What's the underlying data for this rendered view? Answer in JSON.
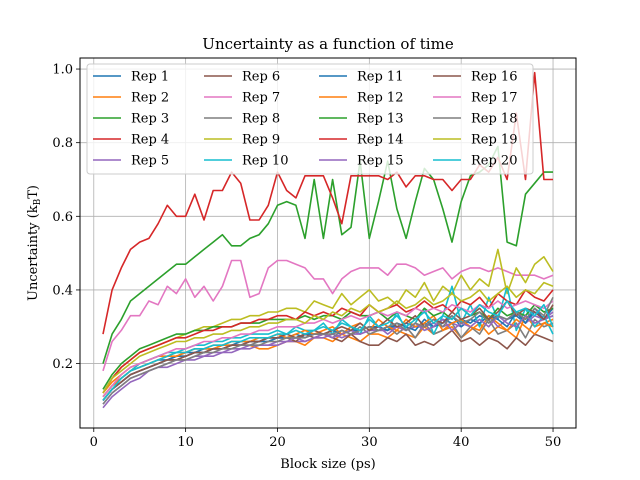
{
  "chart_data": {
    "type": "line",
    "title": "Uncertainty as a function of time",
    "xlabel": "Block size (ps)",
    "ylabel_main": "Uncertainty (k",
    "ylabel_sub": "B",
    "ylabel_tail": "T)",
    "xlim": [
      -1.5,
      52.5
    ],
    "ylim": [
      0.025,
      1.03
    ],
    "xticks": [
      0,
      10,
      20,
      30,
      40,
      50
    ],
    "yticks": [
      0.2,
      0.4,
      0.6,
      0.8,
      1.0
    ],
    "xtick_labels": [
      "0",
      "10",
      "20",
      "30",
      "40",
      "50"
    ],
    "ytick_labels": [
      "0.2",
      "0.4",
      "0.6",
      "0.8",
      "1.0"
    ],
    "grid": true,
    "legend": {
      "placement": "top-left",
      "columns": 4
    },
    "x": [
      1,
      2,
      3,
      4,
      5,
      6,
      7,
      8,
      9,
      10,
      11,
      12,
      13,
      14,
      15,
      16,
      17,
      18,
      19,
      20,
      21,
      22,
      23,
      24,
      25,
      26,
      27,
      28,
      29,
      30,
      31,
      32,
      33,
      34,
      35,
      36,
      37,
      38,
      39,
      40,
      41,
      42,
      43,
      44,
      45,
      46,
      47,
      48,
      49,
      50
    ],
    "series": [
      {
        "name": "Rep 1",
        "color": "#1f77b4",
        "values": [
          0.11,
          0.14,
          0.16,
          0.18,
          0.19,
          0.2,
          0.21,
          0.21,
          0.22,
          0.23,
          0.23,
          0.24,
          0.24,
          0.25,
          0.25,
          0.26,
          0.26,
          0.26,
          0.27,
          0.27,
          0.27,
          0.28,
          0.27,
          0.28,
          0.28,
          0.29,
          0.28,
          0.29,
          0.29,
          0.3,
          0.29,
          0.3,
          0.3,
          0.31,
          0.3,
          0.31,
          0.3,
          0.32,
          0.31,
          0.32,
          0.31,
          0.33,
          0.32,
          0.33,
          0.32,
          0.33,
          0.31,
          0.34,
          0.32,
          0.35
        ]
      },
      {
        "name": "Rep 2",
        "color": "#ff7f0e",
        "values": [
          0.12,
          0.15,
          0.17,
          0.19,
          0.2,
          0.21,
          0.22,
          0.22,
          0.23,
          0.23,
          0.24,
          0.24,
          0.24,
          0.25,
          0.25,
          0.25,
          0.25,
          0.24,
          0.24,
          0.25,
          0.26,
          0.26,
          0.25,
          0.27,
          0.27,
          0.26,
          0.28,
          0.27,
          0.26,
          0.28,
          0.28,
          0.27,
          0.29,
          0.28,
          0.27,
          0.3,
          0.28,
          0.29,
          0.3,
          0.27,
          0.29,
          0.31,
          0.28,
          0.3,
          0.29,
          0.27,
          0.33,
          0.3,
          0.31,
          0.32
        ]
      },
      {
        "name": "Rep 3",
        "color": "#2ca02c",
        "values": [
          0.2,
          0.28,
          0.32,
          0.37,
          0.39,
          0.41,
          0.43,
          0.45,
          0.47,
          0.47,
          0.49,
          0.51,
          0.53,
          0.55,
          0.52,
          0.52,
          0.54,
          0.55,
          0.58,
          0.63,
          0.64,
          0.63,
          0.54,
          0.7,
          0.54,
          0.7,
          0.55,
          0.57,
          0.75,
          0.54,
          0.64,
          0.75,
          0.62,
          0.54,
          0.64,
          0.73,
          0.7,
          0.62,
          0.53,
          0.64,
          0.71,
          0.72,
          0.74,
          0.79,
          0.53,
          0.52,
          0.66,
          0.69,
          0.72,
          0.72
        ]
      },
      {
        "name": "Rep 4",
        "color": "#d62728",
        "values": [
          0.28,
          0.4,
          0.46,
          0.51,
          0.53,
          0.54,
          0.58,
          0.63,
          0.6,
          0.6,
          0.66,
          0.59,
          0.67,
          0.67,
          0.72,
          0.69,
          0.59,
          0.59,
          0.63,
          0.72,
          0.67,
          0.65,
          0.71,
          0.71,
          0.71,
          0.65,
          0.58,
          0.71,
          0.71,
          0.71,
          0.71,
          0.7,
          0.72,
          0.68,
          0.71,
          0.71,
          0.7,
          0.7,
          0.67,
          0.7,
          0.7,
          0.74,
          0.72,
          0.76,
          0.7,
          0.88,
          0.7,
          0.99,
          0.7,
          0.7
        ]
      },
      {
        "name": "Rep 5",
        "color": "#9467bd",
        "values": [
          0.08,
          0.11,
          0.13,
          0.15,
          0.16,
          0.18,
          0.19,
          0.19,
          0.2,
          0.21,
          0.21,
          0.22,
          0.22,
          0.23,
          0.23,
          0.24,
          0.24,
          0.25,
          0.25,
          0.25,
          0.26,
          0.26,
          0.26,
          0.27,
          0.27,
          0.28,
          0.27,
          0.28,
          0.28,
          0.29,
          0.29,
          0.29,
          0.3,
          0.29,
          0.3,
          0.3,
          0.31,
          0.3,
          0.31,
          0.3,
          0.32,
          0.31,
          0.33,
          0.3,
          0.32,
          0.34,
          0.31,
          0.33,
          0.32,
          0.34
        ]
      },
      {
        "name": "Rep 6",
        "color": "#8c564b",
        "values": [
          0.1,
          0.13,
          0.15,
          0.17,
          0.18,
          0.19,
          0.2,
          0.21,
          0.22,
          0.22,
          0.23,
          0.23,
          0.24,
          0.24,
          0.25,
          0.25,
          0.26,
          0.26,
          0.27,
          0.27,
          0.27,
          0.26,
          0.28,
          0.27,
          0.28,
          0.27,
          0.26,
          0.28,
          0.26,
          0.25,
          0.25,
          0.27,
          0.26,
          0.28,
          0.25,
          0.26,
          0.25,
          0.27,
          0.29,
          0.26,
          0.27,
          0.25,
          0.27,
          0.26,
          0.24,
          0.27,
          0.25,
          0.28,
          0.27,
          0.26
        ]
      },
      {
        "name": "Rep 7",
        "color": "#e377c2",
        "values": [
          0.18,
          0.26,
          0.29,
          0.33,
          0.33,
          0.37,
          0.36,
          0.41,
          0.39,
          0.43,
          0.38,
          0.41,
          0.37,
          0.41,
          0.48,
          0.48,
          0.38,
          0.39,
          0.46,
          0.48,
          0.48,
          0.47,
          0.46,
          0.43,
          0.43,
          0.39,
          0.43,
          0.45,
          0.46,
          0.46,
          0.46,
          0.44,
          0.47,
          0.47,
          0.46,
          0.44,
          0.45,
          0.46,
          0.43,
          0.45,
          0.46,
          0.46,
          0.45,
          0.46,
          0.45,
          0.44,
          0.44,
          0.44,
          0.43,
          0.44
        ]
      },
      {
        "name": "Rep 8",
        "color": "#7f7f7f",
        "values": [
          0.1,
          0.13,
          0.15,
          0.17,
          0.18,
          0.19,
          0.2,
          0.21,
          0.21,
          0.22,
          0.23,
          0.23,
          0.24,
          0.24,
          0.25,
          0.25,
          0.25,
          0.26,
          0.26,
          0.27,
          0.27,
          0.27,
          0.28,
          0.28,
          0.28,
          0.27,
          0.29,
          0.28,
          0.3,
          0.28,
          0.29,
          0.3,
          0.28,
          0.3,
          0.27,
          0.31,
          0.28,
          0.29,
          0.31,
          0.27,
          0.3,
          0.28,
          0.32,
          0.28,
          0.29,
          0.31,
          0.27,
          0.32,
          0.3,
          0.31
        ]
      },
      {
        "name": "Rep 9",
        "color": "#bcbd22",
        "values": [
          0.12,
          0.16,
          0.19,
          0.21,
          0.23,
          0.24,
          0.25,
          0.26,
          0.27,
          0.28,
          0.29,
          0.3,
          0.3,
          0.31,
          0.32,
          0.32,
          0.33,
          0.33,
          0.34,
          0.34,
          0.35,
          0.35,
          0.34,
          0.37,
          0.36,
          0.35,
          0.39,
          0.36,
          0.38,
          0.4,
          0.37,
          0.38,
          0.36,
          0.4,
          0.38,
          0.42,
          0.37,
          0.41,
          0.39,
          0.44,
          0.4,
          0.43,
          0.41,
          0.51,
          0.39,
          0.46,
          0.42,
          0.47,
          0.49,
          0.45
        ]
      },
      {
        "name": "Rep 10",
        "color": "#17becf",
        "values": [
          0.11,
          0.14,
          0.16,
          0.18,
          0.2,
          0.21,
          0.22,
          0.23,
          0.23,
          0.24,
          0.25,
          0.25,
          0.26,
          0.26,
          0.27,
          0.27,
          0.28,
          0.28,
          0.28,
          0.29,
          0.28,
          0.3,
          0.29,
          0.29,
          0.31,
          0.28,
          0.32,
          0.3,
          0.28,
          0.33,
          0.3,
          0.29,
          0.34,
          0.29,
          0.31,
          0.35,
          0.28,
          0.33,
          0.41,
          0.31,
          0.36,
          0.3,
          0.38,
          0.32,
          0.41,
          0.29,
          0.35,
          0.3,
          0.33,
          0.28
        ]
      },
      {
        "name": "Rep 11",
        "color": "#1f77b4",
        "values": [
          0.1,
          0.13,
          0.15,
          0.17,
          0.18,
          0.19,
          0.2,
          0.21,
          0.22,
          0.22,
          0.23,
          0.23,
          0.24,
          0.24,
          0.25,
          0.25,
          0.26,
          0.26,
          0.26,
          0.27,
          0.27,
          0.27,
          0.28,
          0.28,
          0.28,
          0.29,
          0.28,
          0.29,
          0.29,
          0.3,
          0.3,
          0.29,
          0.31,
          0.3,
          0.29,
          0.32,
          0.3,
          0.31,
          0.33,
          0.3,
          0.32,
          0.31,
          0.33,
          0.32,
          0.3,
          0.34,
          0.31,
          0.35,
          0.32,
          0.33
        ]
      },
      {
        "name": "Rep 12",
        "color": "#ff7f0e",
        "values": [
          0.11,
          0.14,
          0.16,
          0.18,
          0.19,
          0.2,
          0.21,
          0.22,
          0.22,
          0.23,
          0.24,
          0.24,
          0.25,
          0.25,
          0.26,
          0.26,
          0.26,
          0.27,
          0.27,
          0.28,
          0.27,
          0.28,
          0.29,
          0.28,
          0.29,
          0.3,
          0.28,
          0.3,
          0.31,
          0.29,
          0.32,
          0.3,
          0.29,
          0.32,
          0.3,
          0.31,
          0.33,
          0.29,
          0.31,
          0.32,
          0.3,
          0.29,
          0.33,
          0.31,
          0.29,
          0.32,
          0.3,
          0.28,
          0.31,
          0.3
        ]
      },
      {
        "name": "Rep 13",
        "color": "#2ca02c",
        "values": [
          0.13,
          0.17,
          0.2,
          0.22,
          0.24,
          0.25,
          0.26,
          0.27,
          0.28,
          0.28,
          0.29,
          0.29,
          0.3,
          0.3,
          0.3,
          0.31,
          0.31,
          0.31,
          0.32,
          0.32,
          0.32,
          0.32,
          0.33,
          0.32,
          0.33,
          0.33,
          0.32,
          0.34,
          0.33,
          0.33,
          0.34,
          0.32,
          0.34,
          0.33,
          0.32,
          0.35,
          0.33,
          0.34,
          0.32,
          0.35,
          0.33,
          0.34,
          0.32,
          0.35,
          0.33,
          0.34,
          0.33,
          0.36,
          0.34,
          0.35
        ]
      },
      {
        "name": "Rep 14",
        "color": "#d62728",
        "values": [
          0.12,
          0.16,
          0.19,
          0.21,
          0.23,
          0.24,
          0.25,
          0.26,
          0.27,
          0.27,
          0.28,
          0.29,
          0.29,
          0.3,
          0.3,
          0.31,
          0.31,
          0.32,
          0.32,
          0.33,
          0.33,
          0.32,
          0.34,
          0.33,
          0.34,
          0.33,
          0.35,
          0.34,
          0.33,
          0.36,
          0.34,
          0.35,
          0.36,
          0.34,
          0.35,
          0.37,
          0.35,
          0.36,
          0.34,
          0.37,
          0.36,
          0.38,
          0.35,
          0.39,
          0.37,
          0.36,
          0.4,
          0.38,
          0.37,
          0.4
        ]
      },
      {
        "name": "Rep 15",
        "color": "#9467bd",
        "values": [
          0.09,
          0.12,
          0.14,
          0.16,
          0.17,
          0.18,
          0.19,
          0.2,
          0.21,
          0.21,
          0.22,
          0.22,
          0.23,
          0.23,
          0.24,
          0.24,
          0.25,
          0.25,
          0.25,
          0.26,
          0.26,
          0.27,
          0.26,
          0.27,
          0.28,
          0.27,
          0.28,
          0.29,
          0.28,
          0.29,
          0.3,
          0.28,
          0.3,
          0.29,
          0.31,
          0.29,
          0.3,
          0.32,
          0.29,
          0.31,
          0.3,
          0.32,
          0.3,
          0.33,
          0.31,
          0.3,
          0.33,
          0.31,
          0.32,
          0.33
        ]
      },
      {
        "name": "Rep 16",
        "color": "#8c564b",
        "values": [
          0.1,
          0.13,
          0.15,
          0.17,
          0.18,
          0.19,
          0.2,
          0.21,
          0.21,
          0.22,
          0.23,
          0.23,
          0.24,
          0.24,
          0.25,
          0.25,
          0.26,
          0.26,
          0.27,
          0.27,
          0.28,
          0.27,
          0.28,
          0.29,
          0.28,
          0.29,
          0.3,
          0.29,
          0.31,
          0.29,
          0.3,
          0.32,
          0.3,
          0.31,
          0.33,
          0.3,
          0.32,
          0.31,
          0.34,
          0.32,
          0.33,
          0.35,
          0.32,
          0.34,
          0.37,
          0.33,
          0.35,
          0.34,
          0.32,
          0.36
        ]
      },
      {
        "name": "Rep 17",
        "color": "#e377c2",
        "values": [
          0.11,
          0.14,
          0.17,
          0.19,
          0.2,
          0.21,
          0.22,
          0.23,
          0.24,
          0.24,
          0.25,
          0.26,
          0.26,
          0.27,
          0.27,
          0.28,
          0.28,
          0.29,
          0.29,
          0.3,
          0.3,
          0.3,
          0.31,
          0.31,
          0.32,
          0.31,
          0.32,
          0.33,
          0.32,
          0.33,
          0.34,
          0.33,
          0.34,
          0.33,
          0.35,
          0.34,
          0.35,
          0.34,
          0.36,
          0.35,
          0.34,
          0.36,
          0.35,
          0.37,
          0.35,
          0.36,
          0.37,
          0.36,
          0.35,
          0.37
        ]
      },
      {
        "name": "Rep 18",
        "color": "#7f7f7f",
        "values": [
          0.09,
          0.12,
          0.14,
          0.16,
          0.17,
          0.18,
          0.19,
          0.2,
          0.21,
          0.21,
          0.22,
          0.23,
          0.23,
          0.24,
          0.24,
          0.25,
          0.25,
          0.25,
          0.26,
          0.26,
          0.27,
          0.27,
          0.27,
          0.28,
          0.28,
          0.28,
          0.29,
          0.28,
          0.29,
          0.3,
          0.29,
          0.3,
          0.31,
          0.29,
          0.31,
          0.3,
          0.32,
          0.3,
          0.33,
          0.31,
          0.32,
          0.34,
          0.31,
          0.33,
          0.32,
          0.34,
          0.32,
          0.35,
          0.33,
          0.38
        ]
      },
      {
        "name": "Rep 19",
        "color": "#bcbd22",
        "values": [
          0.12,
          0.16,
          0.18,
          0.2,
          0.22,
          0.23,
          0.24,
          0.25,
          0.26,
          0.26,
          0.27,
          0.27,
          0.28,
          0.28,
          0.29,
          0.29,
          0.3,
          0.3,
          0.31,
          0.31,
          0.32,
          0.32,
          0.31,
          0.33,
          0.32,
          0.34,
          0.33,
          0.35,
          0.34,
          0.36,
          0.34,
          0.35,
          0.37,
          0.35,
          0.36,
          0.38,
          0.36,
          0.37,
          0.39,
          0.37,
          0.38,
          0.4,
          0.37,
          0.39,
          0.41,
          0.38,
          0.4,
          0.39,
          0.42,
          0.41
        ]
      },
      {
        "name": "Rep 20",
        "color": "#17becf",
        "values": [
          0.1,
          0.13,
          0.16,
          0.18,
          0.19,
          0.2,
          0.21,
          0.22,
          0.23,
          0.23,
          0.24,
          0.24,
          0.25,
          0.25,
          0.26,
          0.26,
          0.27,
          0.27,
          0.27,
          0.28,
          0.28,
          0.29,
          0.28,
          0.29,
          0.3,
          0.29,
          0.31,
          0.3,
          0.29,
          0.32,
          0.3,
          0.31,
          0.33,
          0.3,
          0.32,
          0.34,
          0.31,
          0.33,
          0.32,
          0.35,
          0.33,
          0.36,
          0.34,
          0.33,
          0.37,
          0.34,
          0.35,
          0.33,
          0.36,
          0.3
        ]
      }
    ]
  }
}
